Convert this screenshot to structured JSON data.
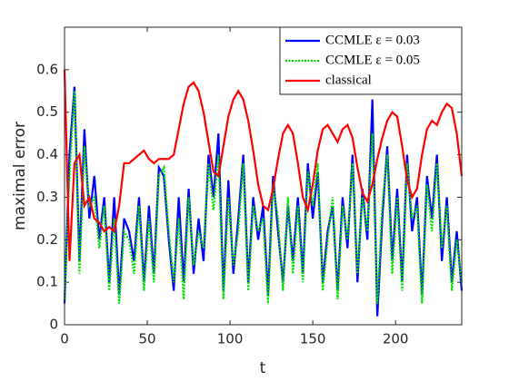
{
  "chart_data": {
    "type": "line",
    "xlabel": "t",
    "ylabel": "maximal error",
    "xlim": [
      0,
      240
    ],
    "ylim": [
      0,
      0.7
    ],
    "xticks": [
      0,
      50,
      100,
      150,
      200
    ],
    "yticks": [
      0,
      0.1,
      0.2,
      0.3,
      0.4,
      0.5,
      0.6
    ],
    "legend": "top-right",
    "x": [
      0,
      3,
      6,
      9,
      12,
      15,
      18,
      21,
      24,
      27,
      30,
      33,
      36,
      39,
      42,
      45,
      48,
      51,
      54,
      57,
      60,
      63,
      66,
      69,
      72,
      75,
      78,
      81,
      84,
      87,
      90,
      93,
      96,
      99,
      102,
      105,
      108,
      111,
      114,
      117,
      120,
      123,
      126,
      129,
      132,
      135,
      138,
      141,
      144,
      147,
      150,
      153,
      156,
      159,
      162,
      165,
      168,
      171,
      174,
      177,
      180,
      183,
      186,
      189,
      192,
      195,
      198,
      201,
      204,
      207,
      210,
      213,
      216,
      219,
      222,
      225,
      228,
      231,
      234,
      237,
      240
    ],
    "series": [
      {
        "name": "CCMLE ε = 0.03",
        "color": "#0000ff",
        "style": "solid",
        "values": [
          0.05,
          0.4,
          0.56,
          0.15,
          0.46,
          0.25,
          0.35,
          0.2,
          0.3,
          0.1,
          0.3,
          0.07,
          0.25,
          0.22,
          0.15,
          0.3,
          0.1,
          0.28,
          0.12,
          0.37,
          0.35,
          0.2,
          0.08,
          0.3,
          0.1,
          0.32,
          0.12,
          0.25,
          0.15,
          0.4,
          0.3,
          0.45,
          0.08,
          0.34,
          0.12,
          0.25,
          0.4,
          0.1,
          0.3,
          0.2,
          0.28,
          0.07,
          0.35,
          0.22,
          0.1,
          0.28,
          0.15,
          0.3,
          0.12,
          0.38,
          0.25,
          0.36,
          0.1,
          0.22,
          0.28,
          0.08,
          0.3,
          0.18,
          0.4,
          0.1,
          0.32,
          0.2,
          0.53,
          0.02,
          0.25,
          0.42,
          0.15,
          0.32,
          0.1,
          0.4,
          0.22,
          0.3,
          0.07,
          0.35,
          0.25,
          0.4,
          0.15,
          0.3,
          0.1,
          0.22,
          0.08
        ]
      },
      {
        "name": "CCMLE ε = 0.05",
        "color": "#00e000",
        "style": "dotted",
        "values": [
          0.06,
          0.35,
          0.55,
          0.12,
          0.42,
          0.28,
          0.3,
          0.18,
          0.28,
          0.08,
          0.25,
          0.05,
          0.22,
          0.2,
          0.12,
          0.28,
          0.08,
          0.25,
          0.1,
          0.35,
          0.37,
          0.22,
          0.1,
          0.25,
          0.06,
          0.3,
          0.14,
          0.22,
          0.18,
          0.38,
          0.27,
          0.4,
          0.06,
          0.3,
          0.14,
          0.22,
          0.38,
          0.08,
          0.28,
          0.22,
          0.25,
          0.05,
          0.33,
          0.25,
          0.08,
          0.3,
          0.12,
          0.28,
          0.1,
          0.36,
          0.28,
          0.38,
          0.08,
          0.2,
          0.3,
          0.06,
          0.28,
          0.2,
          0.38,
          0.12,
          0.3,
          0.22,
          0.45,
          0.05,
          0.28,
          0.4,
          0.12,
          0.3,
          0.08,
          0.38,
          0.25,
          0.28,
          0.05,
          0.33,
          0.22,
          0.38,
          0.18,
          0.28,
          0.08,
          0.2,
          0.1
        ]
      },
      {
        "name": "classical",
        "color": "#ff0000",
        "style": "solid",
        "values": [
          0.6,
          0.15,
          0.38,
          0.4,
          0.28,
          0.3,
          0.25,
          0.24,
          0.22,
          0.23,
          0.22,
          0.28,
          0.38,
          0.38,
          0.39,
          0.4,
          0.41,
          0.39,
          0.38,
          0.39,
          0.39,
          0.39,
          0.4,
          0.46,
          0.52,
          0.56,
          0.57,
          0.55,
          0.5,
          0.43,
          0.36,
          0.35,
          0.42,
          0.49,
          0.53,
          0.55,
          0.53,
          0.48,
          0.41,
          0.33,
          0.28,
          0.27,
          0.32,
          0.39,
          0.45,
          0.47,
          0.45,
          0.38,
          0.3,
          0.27,
          0.33,
          0.41,
          0.46,
          0.47,
          0.45,
          0.43,
          0.46,
          0.47,
          0.44,
          0.37,
          0.31,
          0.29,
          0.33,
          0.39,
          0.44,
          0.48,
          0.5,
          0.49,
          0.42,
          0.34,
          0.3,
          0.32,
          0.4,
          0.46,
          0.48,
          0.47,
          0.5,
          0.52,
          0.51,
          0.45,
          0.35
        ]
      }
    ]
  }
}
